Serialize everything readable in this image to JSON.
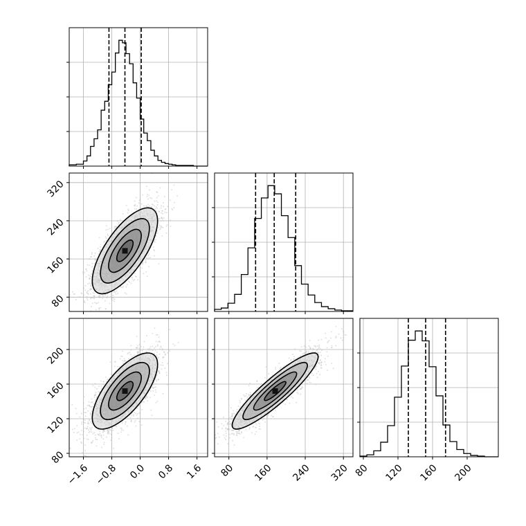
{
  "chart_data": {
    "type": "corner",
    "title": "",
    "parameters": [
      {
        "name": "",
        "range": [
          -2.0,
          1.9
        ],
        "ticks": [
          "−1.6",
          "−0.8",
          "0.0",
          "0.8",
          "1.6"
        ],
        "tick_values": [
          -1.6,
          -0.8,
          0.0,
          0.8,
          1.6
        ]
      },
      {
        "name": "",
        "range": [
          50,
          340
        ],
        "ticks": [
          "80",
          "160",
          "240",
          "320"
        ],
        "tick_values": [
          80,
          160,
          240,
          320
        ]
      },
      {
        "name": "",
        "range": [
          76,
          236
        ],
        "ticks": [
          "80",
          "120",
          "160",
          "200"
        ],
        "tick_values": [
          80,
          120,
          160,
          200
        ]
      }
    ],
    "grid": true,
    "quantile_lines": "dashed",
    "histograms": [
      {
        "parameter": 0,
        "quantiles": [
          -0.88,
          -0.43,
          0.03
        ],
        "bin_edges": [
          -2.0,
          -1.8,
          -1.6,
          -1.5,
          -1.4,
          -1.3,
          -1.2,
          -1.1,
          -1.0,
          -0.9,
          -0.8,
          -0.7,
          -0.6,
          -0.5,
          -0.4,
          -0.3,
          -0.2,
          -0.1,
          0.0,
          0.1,
          0.2,
          0.3,
          0.4,
          0.5,
          0.6,
          0.7,
          0.8,
          0.9,
          1.0,
          1.2,
          1.5,
          1.9
        ],
        "counts": [
          2,
          3,
          8,
          16,
          31,
          43,
          57,
          88,
          102,
          128,
          148,
          178,
          198,
          194,
          177,
          161,
          131,
          107,
          74,
          52,
          40,
          25,
          16,
          9,
          6,
          4,
          3,
          2,
          1,
          1,
          0
        ]
      },
      {
        "parameter": 1,
        "quantiles": [
          136,
          175,
          220
        ],
        "bin_edges": [
          50,
          64,
          78,
          92,
          106,
          120,
          134,
          148,
          162,
          176,
          190,
          204,
          218,
          232,
          246,
          260,
          274,
          288,
          302,
          316,
          340
        ],
        "counts": [
          3,
          5,
          12,
          25,
          54,
          93,
          136,
          166,
          184,
          172,
          140,
          108,
          67,
          40,
          24,
          13,
          7,
          4,
          2,
          1
        ]
      },
      {
        "parameter": 2,
        "quantiles": [
          132,
          152,
          175
        ],
        "bin_edges": [
          76,
          84,
          92,
          100,
          108,
          116,
          124,
          132,
          140,
          148,
          156,
          164,
          172,
          180,
          188,
          196,
          204,
          212,
          220,
          236
        ],
        "counts": [
          1,
          3,
          9,
          22,
          47,
          90,
          137,
          176,
          190,
          175,
          136,
          92,
          48,
          23,
          11,
          5,
          2,
          1,
          0
        ]
      }
    ],
    "joint": [
      {
        "x": 0,
        "y": 1,
        "mean": [
          -0.43,
          177
        ],
        "sd": [
          0.46,
          45
        ],
        "correlation": 0.7
      },
      {
        "x": 0,
        "y": 2,
        "mean": [
          -0.43,
          152
        ],
        "sd": [
          0.46,
          22
        ],
        "correlation": 0.7
      },
      {
        "x": 1,
        "y": 2,
        "mean": [
          177,
          152
        ],
        "sd": [
          45,
          22
        ],
        "correlation": 0.9
      }
    ],
    "colors": {
      "axes": "#000000",
      "grid": "#b0b0b0",
      "points": "#bbbbbb",
      "step": "#000000"
    }
  }
}
